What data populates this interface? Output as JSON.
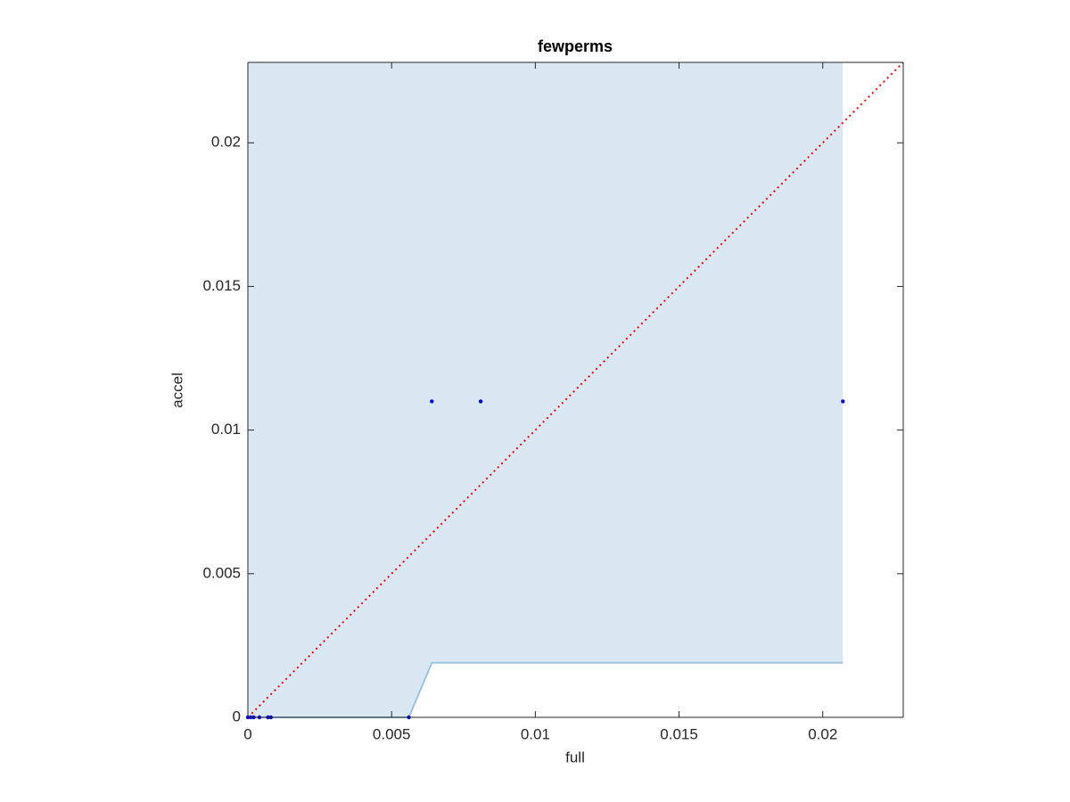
{
  "chart_data": {
    "type": "scatter",
    "title": "fewperms",
    "xlabel": "full",
    "ylabel": "accel",
    "xlim": [
      0,
      0.0228
    ],
    "ylim": [
      0,
      0.0228
    ],
    "xticks": [
      0,
      0.005,
      0.01,
      0.015,
      0.02
    ],
    "yticks": [
      0,
      0.005,
      0.01,
      0.015,
      0.02
    ],
    "grid": false,
    "series": [
      {
        "type": "area",
        "color": "#9ac4e4",
        "fill_color": "#dae8f4",
        "x": [
          0,
          0.0056,
          0.0064,
          0.0207
        ],
        "values": [
          0,
          0,
          0.0019,
          0.0019
        ]
      },
      {
        "type": "line",
        "color": "#ff0000",
        "dotted": true,
        "x": [
          0,
          0.0228
        ],
        "values": [
          0,
          0.0228
        ]
      },
      {
        "type": "scatter",
        "color": "#0000ff",
        "x": [
          0,
          0.0001,
          0.0002,
          0.0004,
          0.0007,
          0.0008,
          0.0056,
          0.0064,
          0.0081,
          0.0207
        ],
        "values": [
          0,
          0,
          0,
          0,
          0,
          0,
          0,
          0.011,
          0.011,
          0.011
        ]
      }
    ]
  }
}
